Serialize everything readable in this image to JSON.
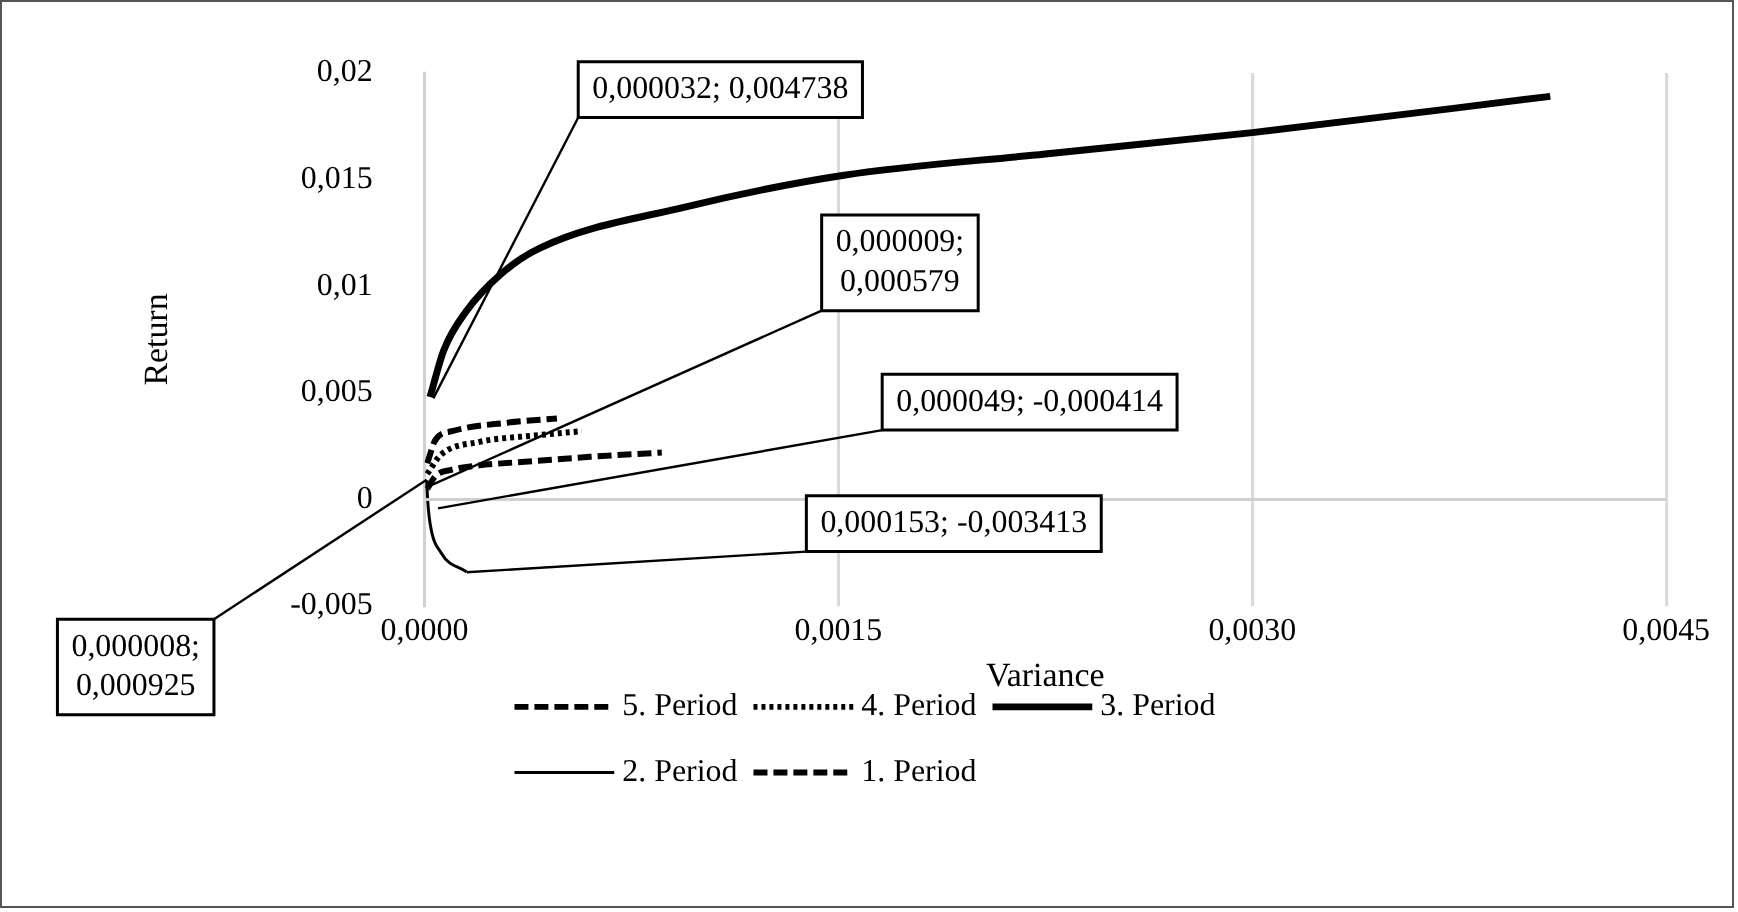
{
  "chart_data": {
    "type": "line",
    "xlabel": "Variance",
    "ylabel": "Return",
    "xlim": [
      0,
      0.0045
    ],
    "xticks": [
      {
        "value": 0,
        "label": "0,0000"
      },
      {
        "value": 0.0015,
        "label": "0,0015"
      },
      {
        "value": 0.003,
        "label": "0,0030"
      },
      {
        "value": 0.0045,
        "label": "0,0045"
      }
    ],
    "ylim": [
      -0.005,
      0.02
    ],
    "yticks": [
      {
        "value": -0.005,
        "label": "-0,005"
      },
      0,
      {
        "value": 0.005,
        "label": "0,005"
      },
      {
        "value": 0.01,
        "label": "0,01"
      },
      {
        "value": 0.015,
        "label": "0,015"
      },
      {
        "value": 0.02,
        "label": "0,02"
      }
    ],
    "grid": "x",
    "legend": "bottom",
    "marker": "none",
    "series": [
      {
        "name": "5. Period",
        "color": "#000000",
        "line_style": "dashed",
        "x": [
          1e-05,
          4e-05,
          0.0001,
          0.0002,
          0.0004,
          0.0006,
          0.00086
        ],
        "values": [
          0.0005,
          0.0011,
          0.0014,
          0.0016,
          0.0018,
          0.002,
          0.0022
        ]
      },
      {
        "name": "4. Period",
        "color": "#000000",
        "line_style": "dotted",
        "x": [
          1e-05,
          6e-05,
          0.0002,
          0.0004,
          0.00057
        ],
        "values": [
          0.0012,
          0.0021,
          0.0027,
          0.003,
          0.0032
        ]
      },
      {
        "name": "3. Period",
        "color": "#000000",
        "line_style": "solid",
        "x": [
          2e-05,
          7e-05,
          0.00015,
          0.00028,
          0.00042,
          0.00094,
          0.00152,
          0.00225,
          0.003,
          0.00408
        ],
        "values": [
          0.0048,
          0.007,
          0.0088,
          0.0106,
          0.0118,
          0.0137,
          0.0152,
          0.0162,
          0.0172,
          0.0189
        ]
      },
      {
        "name": "2. Period",
        "color": "#000000",
        "line_style": "solid",
        "x": [
          8e-06,
          1.2e-05,
          2e-05,
          6e-05,
          0.000153
        ],
        "values": [
          0.0009,
          -0.0001,
          -0.0011,
          -0.0025,
          -0.0034
        ]
      },
      {
        "name": "1. Period",
        "color": "#000000",
        "line_style": "dashed",
        "x": [
          1e-05,
          4e-05,
          0.0001,
          0.0003,
          0.00048
        ],
        "values": [
          0.0017,
          0.0028,
          0.0032,
          0.0036,
          0.0038
        ]
      }
    ],
    "annotations": [
      {
        "text": "0,000032; 0,004738",
        "x": 3.2e-05,
        "y": 0.004738
      },
      {
        "text": "0,000009; 0,000579",
        "x": 9e-06,
        "y": 0.000579
      },
      {
        "text": "0,000049; -0,000414",
        "x": 4.9e-05,
        "y": -0.000414
      },
      {
        "text": "0,000153; -0,003413",
        "x": 0.000153,
        "y": -0.003413
      },
      {
        "text": "0,000008; 0,000925",
        "x": 8e-06,
        "y": 0.000925
      }
    ]
  }
}
